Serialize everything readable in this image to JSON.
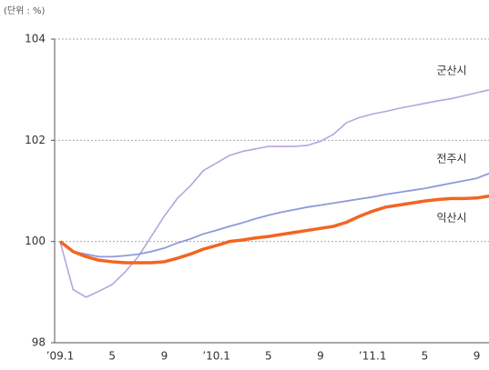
{
  "chart_data": {
    "type": "line",
    "unit": "(단위 : %)",
    "categories": [
      "’09.1",
      null,
      null,
      null,
      "5",
      null,
      null,
      null,
      "9",
      null,
      null,
      null,
      "’10.1",
      null,
      null,
      null,
      "5",
      null,
      null,
      null,
      "9",
      null,
      null,
      null,
      "’11.1",
      null,
      null,
      null,
      "5",
      null,
      null,
      null,
      "9",
      null
    ],
    "series": [
      {
        "name": "군산시",
        "color": "#b9a3dc",
        "values": [
          100.0,
          99.05,
          98.9,
          99.02,
          99.15,
          99.4,
          99.7,
          100.1,
          100.5,
          100.85,
          101.1,
          101.4,
          101.55,
          101.7,
          101.78,
          101.83,
          101.88,
          101.88,
          101.88,
          101.9,
          101.98,
          102.12,
          102.35,
          102.45,
          102.52,
          102.57,
          102.63,
          102.68,
          102.73,
          102.78,
          102.82,
          102.88,
          102.94,
          103.0
        ]
      },
      {
        "name": "전주시",
        "color": "#8f99da",
        "values": [
          100.0,
          99.8,
          99.75,
          99.7,
          99.7,
          99.72,
          99.75,
          99.8,
          99.87,
          99.97,
          100.05,
          100.15,
          100.22,
          100.3,
          100.37,
          100.45,
          100.52,
          100.58,
          100.63,
          100.68,
          100.72,
          100.76,
          100.8,
          100.84,
          100.88,
          100.93,
          100.97,
          101.01,
          101.05,
          101.1,
          101.15,
          101.2,
          101.25,
          101.35
        ]
      },
      {
        "name": "익산시",
        "color": "#f26522",
        "values": [
          100.0,
          99.8,
          99.7,
          99.63,
          99.6,
          99.58,
          99.58,
          99.58,
          99.6,
          99.67,
          99.75,
          99.85,
          99.92,
          100.0,
          100.03,
          100.07,
          100.1,
          100.14,
          100.18,
          100.22,
          100.26,
          100.3,
          100.38,
          100.5,
          100.6,
          100.68,
          100.72,
          100.76,
          100.8,
          100.83,
          100.85,
          100.85,
          100.86,
          100.9
        ]
      }
    ],
    "ylim": [
      98,
      104
    ],
    "yticks": [
      98,
      100,
      102,
      104
    ],
    "grid": true
  }
}
